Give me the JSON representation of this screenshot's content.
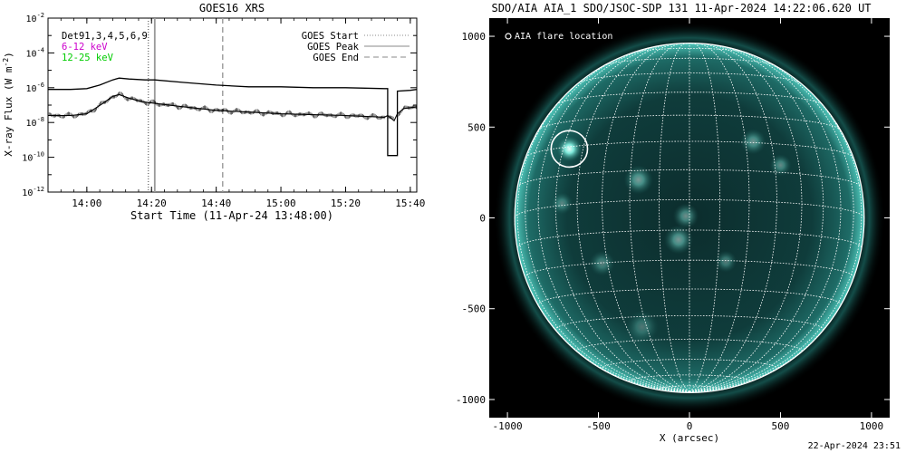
{
  "chart_data": [
    {
      "type": "line",
      "title": "GOES16 XRS",
      "xlabel": "Start Time (11-Apr-24 13:48:00)",
      "ylabel_text": "X-ray Flux (W m",
      "ylabel_exp": "-2",
      "ylabel_close": ")",
      "yscale": "log",
      "ylim_exp": [
        -12,
        -2
      ],
      "xlim_minutes": [
        "13:48",
        "15:42"
      ],
      "x_ticks": [
        "14:00",
        "14:20",
        "14:40",
        "15:00",
        "15:20",
        "15:40"
      ],
      "y_ticks": [
        {
          "base": "10",
          "exp": "-12"
        },
        {
          "base": "10",
          "exp": "-10"
        },
        {
          "base": "10",
          "exp": "-8"
        },
        {
          "base": "10",
          "exp": "-6"
        },
        {
          "base": "10",
          "exp": "-4"
        },
        {
          "base": "10",
          "exp": "-2"
        }
      ],
      "legend_left": [
        {
          "label": "Det91,3,4,5,6,9",
          "color": "#000000"
        },
        {
          "label": "6-12 keV",
          "color": "#cc00cc"
        },
        {
          "label": "12-25 keV",
          "color": "#00cc00"
        }
      ],
      "legend_right": [
        {
          "label": "GOES Start",
          "style": "dotted"
        },
        {
          "label": "GOES Peak",
          "style": "solid"
        },
        {
          "label": "GOES End",
          "style": "dashed"
        }
      ],
      "markers": {
        "start": "14:19",
        "peak": "14:21",
        "end": "14:42"
      },
      "series": [
        {
          "band": "long",
          "x": [
            "13:48",
            "13:55",
            "14:00",
            "14:04",
            "14:08",
            "14:10",
            "14:13",
            "14:18",
            "14:21",
            "14:30",
            "14:40",
            "14:50",
            "15:00",
            "15:10",
            "15:20",
            "15:32",
            "15:33",
            "15:35",
            "15:36",
            "15:40",
            "15:42"
          ],
          "y_exp": [
            -6.1,
            -6.1,
            -6.05,
            -5.85,
            -5.55,
            -5.45,
            -5.5,
            -5.55,
            -5.55,
            -5.7,
            -5.85,
            -5.95,
            -5.95,
            -6.0,
            -6.0,
            -6.05,
            -9.9,
            -9.9,
            -6.2,
            -6.15,
            -6.1
          ]
        },
        {
          "band": "short",
          "x": [
            "13:48",
            "13:55",
            "14:00",
            "14:05",
            "14:08",
            "14:10",
            "14:13",
            "14:17",
            "14:21",
            "14:30",
            "14:40",
            "14:50",
            "15:00",
            "15:10",
            "15:20",
            "15:32",
            "15:33",
            "15:35",
            "15:36",
            "15:38",
            "15:42"
          ],
          "y_exp": [
            -7.6,
            -7.6,
            -7.5,
            -6.9,
            -6.5,
            -6.4,
            -6.6,
            -6.8,
            -6.9,
            -7.1,
            -7.3,
            -7.4,
            -7.5,
            -7.55,
            -7.6,
            -7.7,
            -7.6,
            -7.9,
            -7.5,
            -7.2,
            -7.1
          ]
        }
      ]
    },
    {
      "type": "map",
      "title": "SDO/AIA AIA_1 SDO/JSOC-SDP 131 11-Apr-2024 14:22:06.620 UT",
      "xlabel": "X (arcsec)",
      "xlim": [
        -1100,
        1100
      ],
      "ylim": [
        -1100,
        1100
      ],
      "x_ticks": [
        "-1000",
        "-500",
        "0",
        "500",
        "1000"
      ],
      "y_ticks": [
        "-1000",
        "-500",
        "0",
        "500",
        "1000"
      ],
      "legend": "O AIA flare location",
      "solar_radius_arcsec": 960,
      "flare_location_arcsec": [
        -660,
        380
      ],
      "colors": {
        "disk": "#0e3a3a",
        "highlight": "#cffcf5",
        "grid": "#ffffff"
      }
    }
  ],
  "footer": {
    "timestamp": "22-Apr-2024 23:51"
  }
}
